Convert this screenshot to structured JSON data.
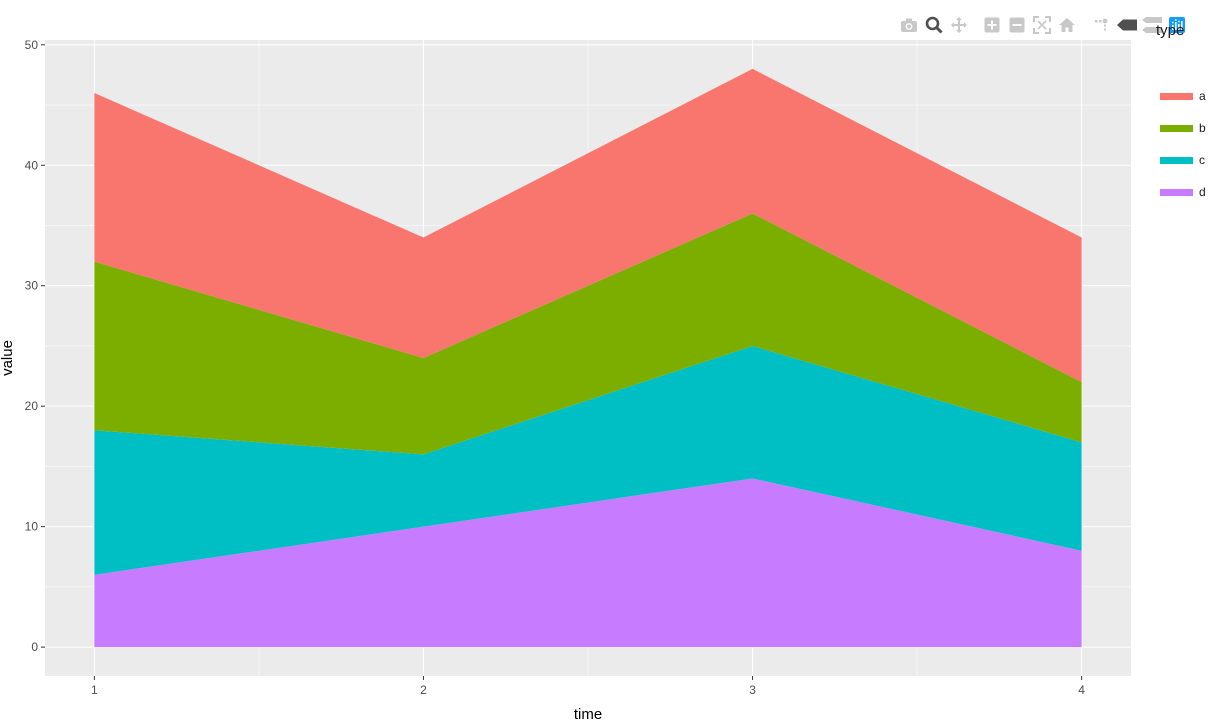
{
  "chart_data": {
    "type": "area",
    "stacked": true,
    "x": [
      1,
      2,
      3,
      4
    ],
    "series": [
      {
        "name": "d",
        "values": [
          6,
          10,
          14,
          8
        ],
        "color": "#C77CFF"
      },
      {
        "name": "c",
        "values": [
          12,
          6,
          11,
          9
        ],
        "color": "#00BFC4"
      },
      {
        "name": "b",
        "values": [
          14,
          8,
          11,
          5
        ],
        "color": "#7CAE00"
      },
      {
        "name": "a",
        "values": [
          14,
          10,
          12,
          12
        ],
        "color": "#F8766D"
      }
    ],
    "xlabel": "time",
    "ylabel": "value",
    "xlim": [
      0.85,
      4.15
    ],
    "ylim": [
      -2.4,
      50.4
    ],
    "x_ticks": [
      "1",
      "2",
      "3",
      "4"
    ],
    "y_ticks": [
      "0",
      "10",
      "20",
      "30",
      "40",
      "50"
    ],
    "grid": true,
    "panel_background": "#EBEBEB",
    "legend": {
      "title": "type",
      "placement": "right",
      "entries": [
        "a",
        "b",
        "c",
        "d"
      ]
    }
  },
  "toolbar": {
    "icons": [
      "camera-icon",
      "zoom-icon",
      "pan-icon",
      "zoom-in-icon",
      "zoom-out-icon",
      "autoscale-icon",
      "home-icon",
      "spike-lines-icon",
      "hover-closest-icon",
      "hover-compare-icon",
      "plotly-logo-icon"
    ]
  }
}
